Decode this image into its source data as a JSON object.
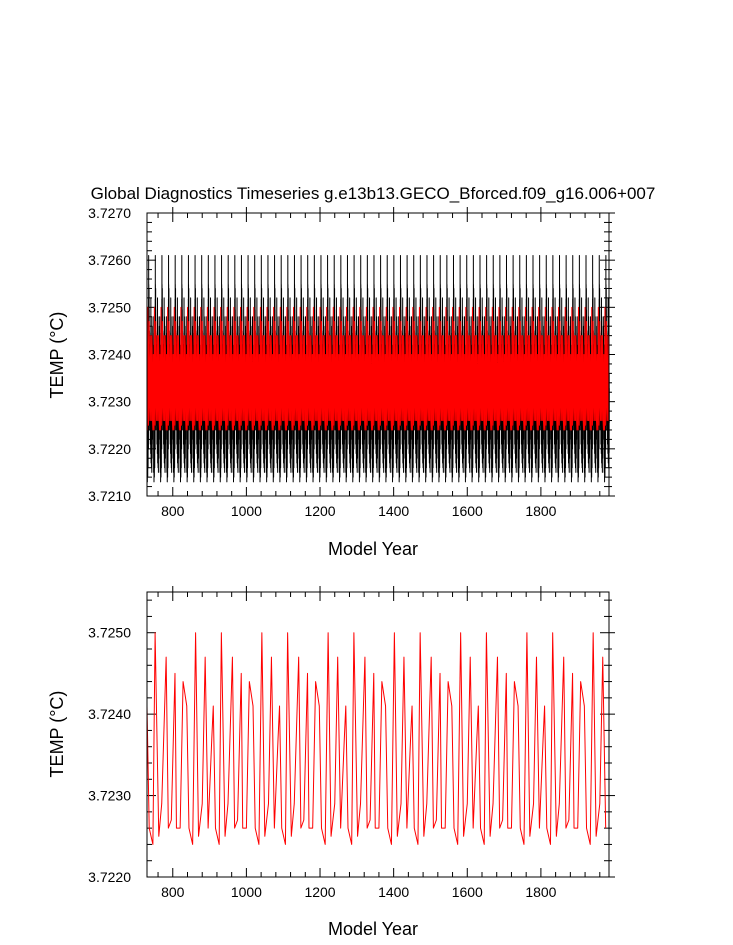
{
  "chart_data": [
    {
      "type": "line",
      "title": "Global Diagnostics Timeseries g.e13b13.GECO_Bforced.f09_g16.006+007",
      "xlabel": "Model Year",
      "ylabel": "TEMP (°C)",
      "xlim": [
        730,
        1985
      ],
      "ylim": [
        3.721,
        3.727
      ],
      "x_ticks": [
        800,
        1000,
        1200,
        1400,
        1600,
        1800
      ],
      "x_tick_labels": [
        "800",
        "1000",
        "1200",
        "1400",
        "1600",
        "1800"
      ],
      "y_ticks": [
        3.721,
        3.722,
        3.723,
        3.724,
        3.725,
        3.726,
        3.727
      ],
      "y_tick_labels": [
        "3.7210",
        "3.7220",
        "3.7230",
        "3.7240",
        "3.7250",
        "3.7260",
        "3.7270"
      ],
      "cycle_period_years": 18,
      "series": [
        {
          "color": "#000000",
          "note_monthly_cycle_within_each_year": true,
          "cycle_x_offsets": [
            0,
            1,
            2,
            3,
            4,
            5,
            6,
            7,
            8,
            9,
            10,
            11,
            12,
            13,
            14,
            15,
            16,
            17
          ],
          "cycle_min": [
            3.7215,
            3.7213,
            3.7214,
            3.7216,
            3.722,
            3.7224,
            3.7226,
            3.7225,
            3.7224,
            3.7221,
            3.7219,
            3.7217,
            3.7216,
            3.7215,
            3.7218,
            3.7222,
            3.7225,
            3.7224
          ],
          "cycle_max": [
            3.7233,
            3.7232,
            3.7238,
            3.7248,
            3.7261,
            3.7254,
            3.7245,
            3.7241,
            3.724,
            3.7244,
            3.7252,
            3.7248,
            3.724,
            3.7236,
            3.7233,
            3.7246,
            3.7248,
            3.7242
          ]
        },
        {
          "color": "#ff0000",
          "cycle_x_offsets": [
            0,
            1,
            2,
            3,
            4,
            5,
            6,
            7,
            8,
            9,
            10,
            11,
            12,
            13,
            14,
            15,
            16,
            17
          ],
          "cycle_values": [
            3.7226,
            3.7224,
            3.725,
            3.7243,
            3.7225,
            3.7229,
            3.7247,
            3.7234,
            3.7226,
            3.7237,
            3.7244,
            3.7226,
            3.7226,
            3.7244,
            3.7241,
            3.7226,
            3.7224,
            3.724
          ]
        }
      ]
    },
    {
      "type": "line",
      "title": "",
      "xlabel": "Model Year",
      "ylabel": "TEMP (°C)",
      "xlim": [
        730,
        1985
      ],
      "ylim": [
        3.722,
        3.7255
      ],
      "x_ticks": [
        800,
        1000,
        1200,
        1400,
        1600,
        1800
      ],
      "x_tick_labels": [
        "800",
        "1000",
        "1200",
        "1400",
        "1600",
        "1800"
      ],
      "y_ticks": [
        3.722,
        3.723,
        3.724,
        3.725
      ],
      "y_tick_labels": [
        "3.7220",
        "3.7230",
        "3.7240",
        "3.7250"
      ],
      "cycle_period_years": 180,
      "series": [
        {
          "color": "#ff0000",
          "cycle_x_offsets": [
            0,
            6,
            16,
            22,
            32,
            40,
            52,
            58,
            66,
            76,
            80,
            90,
            98,
            108,
            114,
            124,
            132,
            140,
            150,
            158,
            166,
            176
          ],
          "cycle_values": [
            3.7241,
            3.7226,
            3.7224,
            3.725,
            3.7225,
            3.7229,
            3.7247,
            3.7226,
            3.7227,
            3.7245,
            3.7226,
            3.7226,
            3.7244,
            3.7241,
            3.7226,
            3.7224,
            3.725,
            3.7225,
            3.7229,
            3.7247,
            3.7226,
            3.7237
          ]
        }
      ]
    }
  ]
}
